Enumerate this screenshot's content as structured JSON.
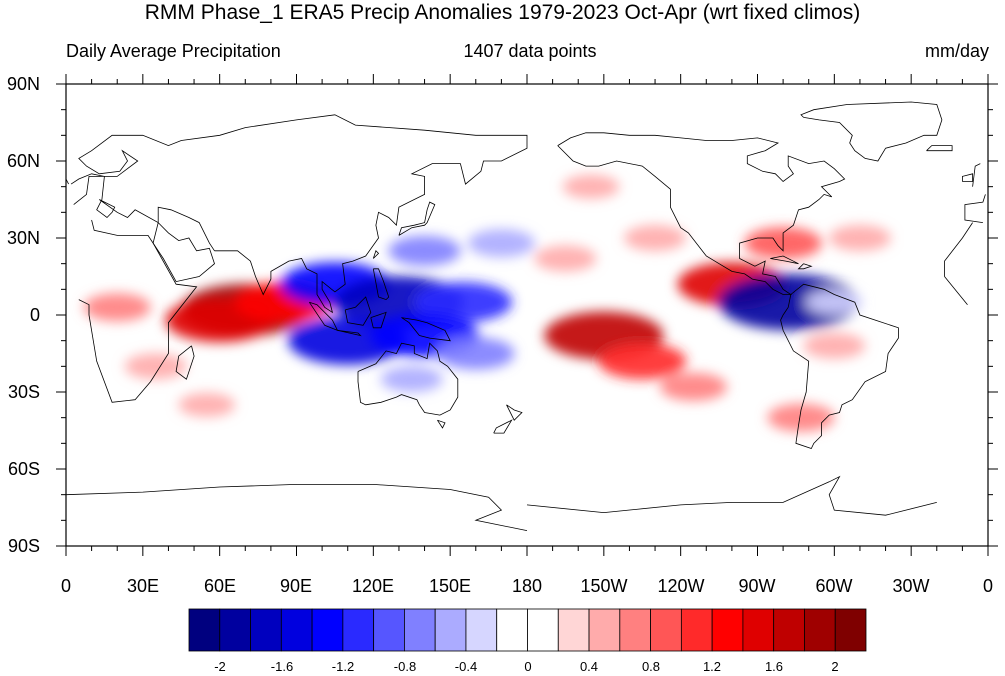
{
  "title": "RMM Phase_1 ERA5 Precip Anomalies 1979-2023 Oct-Apr (wrt fixed climos)",
  "left_string": "Daily Average Precipitation",
  "center_string": "1407 data points",
  "right_string": "mm/day",
  "lat_ticks": [
    "90N",
    "60N",
    "30N",
    "0",
    "30S",
    "60S",
    "90S"
  ],
  "lon_ticks": [
    "0",
    "30E",
    "60E",
    "90E",
    "120E",
    "150E",
    "180",
    "150W",
    "120W",
    "90W",
    "60W",
    "30W",
    "0"
  ],
  "colorbar": {
    "colors": [
      "#00007f",
      "#00009f",
      "#0000bf",
      "#0000df",
      "#0000ff",
      "#2a2aff",
      "#5656ff",
      "#8080ff",
      "#ababff",
      "#d6d6ff",
      "#ffffff",
      "#ffffff",
      "#ffd6d6",
      "#ffabab",
      "#ff8080",
      "#ff5656",
      "#ff2a2a",
      "#ff0000",
      "#df0000",
      "#bf0000",
      "#9f0000",
      "#7f0000"
    ],
    "labels": [
      "-2",
      "-1.6",
      "-1.2",
      "-0.8",
      "-0.4",
      "0",
      "0.4",
      "0.8",
      "1.2",
      "1.6",
      "2"
    ]
  },
  "anomalies": [
    {
      "lon": 70,
      "lat": 2,
      "value": 1.8
    },
    {
      "lon": 60,
      "lat": -2,
      "value": 1.4
    },
    {
      "lon": 85,
      "lat": 5,
      "value": 1.2
    },
    {
      "lon": 20,
      "lat": 3,
      "value": 0.6
    },
    {
      "lon": 35,
      "lat": -20,
      "value": 0.5
    },
    {
      "lon": 105,
      "lat": 12,
      "value": -1.4
    },
    {
      "lon": 130,
      "lat": 5,
      "value": -1.8
    },
    {
      "lon": 155,
      "lat": 5,
      "value": -1.2
    },
    {
      "lon": 110,
      "lat": -10,
      "value": -1.6
    },
    {
      "lon": 140,
      "lat": -8,
      "value": -1.4
    },
    {
      "lon": 160,
      "lat": -15,
      "value": -0.8
    },
    {
      "lon": 140,
      "lat": 25,
      "value": -0.7
    },
    {
      "lon": 170,
      "lat": 28,
      "value": -0.6
    },
    {
      "lon": 135,
      "lat": -25,
      "value": -0.5
    },
    {
      "lon": 210,
      "lat": -8,
      "value": 1.6
    },
    {
      "lon": 225,
      "lat": -18,
      "value": 1.0
    },
    {
      "lon": 245,
      "lat": -28,
      "value": 0.6
    },
    {
      "lon": 260,
      "lat": 12,
      "value": 1.4
    },
    {
      "lon": 280,
      "lat": 28,
      "value": 0.8
    },
    {
      "lon": 282,
      "lat": 5,
      "value": -2.0
    },
    {
      "lon": 300,
      "lat": -12,
      "value": 0.5
    },
    {
      "lon": 310,
      "lat": 30,
      "value": 0.5
    },
    {
      "lon": 230,
      "lat": 30,
      "value": 0.5
    },
    {
      "lon": 195,
      "lat": 22,
      "value": 0.5
    },
    {
      "lon": 300,
      "lat": 5,
      "value": -0.4
    },
    {
      "lon": 287,
      "lat": -40,
      "value": 0.6
    },
    {
      "lon": 55,
      "lat": -35,
      "value": 0.4
    },
    {
      "lon": 205,
      "lat": 50,
      "value": 0.4
    }
  ],
  "coastlines": [
    [
      [
        -17,
        15
      ],
      [
        -17,
        21
      ],
      [
        -10,
        30
      ],
      [
        -6,
        36
      ],
      [
        10,
        37
      ],
      [
        11,
        33
      ],
      [
        20,
        31
      ],
      [
        32,
        31
      ],
      [
        34,
        28
      ],
      [
        43,
        12
      ],
      [
        51,
        11
      ],
      [
        40,
        -3
      ],
      [
        40,
        -15
      ],
      [
        33,
        -26
      ],
      [
        27,
        -33
      ],
      [
        18,
        -34
      ],
      [
        12,
        -18
      ],
      [
        9,
        0
      ],
      [
        9,
        4
      ],
      [
        5,
        6
      ],
      [
        -8,
        4
      ],
      [
        -17,
        15
      ]
    ],
    [
      [
        49,
        -12
      ],
      [
        50,
        -16
      ],
      [
        47,
        -25
      ],
      [
        43,
        -22
      ],
      [
        44,
        -16
      ],
      [
        49,
        -12
      ]
    ],
    [
      [
        34,
        28
      ],
      [
        38,
        22
      ],
      [
        43,
        13
      ],
      [
        52,
        15
      ],
      [
        58,
        20
      ],
      [
        56,
        26
      ],
      [
        51,
        25
      ],
      [
        48,
        30
      ],
      [
        44,
        29
      ],
      [
        40,
        32
      ],
      [
        36,
        36
      ],
      [
        34,
        28
      ]
    ],
    [
      [
        58,
        25
      ],
      [
        67,
        25
      ],
      [
        72,
        21
      ],
      [
        74,
        15
      ],
      [
        77,
        8
      ],
      [
        80,
        14
      ],
      [
        80,
        17
      ],
      [
        87,
        21
      ],
      [
        92,
        22
      ],
      [
        94,
        18
      ],
      [
        98,
        16
      ],
      [
        98,
        8
      ],
      [
        101,
        3
      ],
      [
        104,
        1
      ],
      [
        103,
        5
      ],
      [
        100,
        10
      ],
      [
        100,
        13
      ],
      [
        105,
        9
      ],
      [
        109,
        12
      ],
      [
        108,
        20
      ],
      [
        112,
        21
      ],
      [
        117,
        23
      ],
      [
        122,
        30
      ],
      [
        121,
        35
      ],
      [
        122,
        40
      ],
      [
        126,
        38
      ],
      [
        129,
        35
      ],
      [
        130,
        42
      ],
      [
        140,
        47
      ],
      [
        140,
        54
      ],
      [
        135,
        55
      ],
      [
        143,
        59
      ],
      [
        154,
        59
      ],
      [
        156,
        51
      ],
      [
        162,
        56
      ],
      [
        163,
        60
      ],
      [
        170,
        60
      ],
      [
        180,
        65
      ],
      [
        180,
        70
      ],
      [
        160,
        70
      ],
      [
        140,
        72
      ],
      [
        113,
        74
      ],
      [
        105,
        78
      ],
      [
        90,
        76
      ],
      [
        70,
        73
      ],
      [
        60,
        70
      ],
      [
        45,
        68
      ],
      [
        40,
        66
      ],
      [
        30,
        70
      ],
      [
        18,
        70
      ],
      [
        10,
        64
      ],
      [
        5,
        61
      ],
      [
        8,
        58
      ],
      [
        13,
        55
      ],
      [
        21,
        56
      ],
      [
        24,
        60
      ],
      [
        22,
        64
      ],
      [
        28,
        60
      ],
      [
        20,
        54
      ],
      [
        9,
        54
      ],
      [
        8,
        47
      ],
      [
        3,
        43
      ],
      [
        -2,
        36
      ],
      [
        -9,
        37
      ],
      [
        -9,
        43
      ],
      [
        -2,
        44
      ],
      [
        -1,
        47
      ],
      [
        2,
        51
      ],
      [
        5,
        53
      ],
      [
        10,
        55
      ],
      [
        15,
        54
      ],
      [
        14,
        45
      ],
      [
        12,
        41
      ],
      [
        16,
        38
      ],
      [
        18,
        40
      ],
      [
        19,
        42
      ],
      [
        13,
        45
      ],
      [
        20,
        40
      ],
      [
        24,
        38
      ],
      [
        27,
        41
      ],
      [
        36,
        36
      ],
      [
        36,
        42
      ],
      [
        41,
        41
      ],
      [
        48,
        38
      ],
      [
        52,
        36
      ],
      [
        56,
        28
      ],
      [
        58,
        25
      ]
    ],
    [
      [
        -6,
        50
      ],
      [
        -5,
        58
      ],
      [
        -3,
        59
      ],
      [
        0,
        53
      ],
      [
        1,
        51
      ],
      [
        -6,
        50
      ]
    ],
    [
      [
        -10,
        52
      ],
      [
        -10,
        54
      ],
      [
        -6,
        55
      ],
      [
        -6,
        52
      ],
      [
        -10,
        52
      ]
    ],
    [
      [
        -24,
        64
      ],
      [
        -22,
        66
      ],
      [
        -14,
        66
      ],
      [
        -14,
        64
      ],
      [
        -24,
        64
      ]
    ],
    [
      [
        130,
        31
      ],
      [
        131,
        34
      ],
      [
        136,
        35
      ],
      [
        140,
        36
      ],
      [
        141,
        41
      ],
      [
        142,
        44
      ],
      [
        144,
        43
      ],
      [
        141,
        36
      ],
      [
        140,
        35
      ],
      [
        135,
        34
      ],
      [
        130,
        31
      ]
    ],
    [
      [
        120,
        22
      ],
      [
        121,
        25
      ],
      [
        122,
        24
      ],
      [
        120,
        22
      ]
    ],
    [
      [
        95,
        5
      ],
      [
        98,
        4
      ],
      [
        104,
        -2
      ],
      [
        106,
        -6
      ],
      [
        101,
        -4
      ],
      [
        95,
        5
      ]
    ],
    [
      [
        106,
        -6
      ],
      [
        115,
        -8
      ],
      [
        114,
        -7
      ],
      [
        106,
        -6
      ]
    ],
    [
      [
        109,
        2
      ],
      [
        110,
        -3
      ],
      [
        116,
        -4
      ],
      [
        119,
        1
      ],
      [
        117,
        7
      ],
      [
        113,
        3
      ],
      [
        109,
        2
      ]
    ],
    [
      [
        119,
        -1
      ],
      [
        120,
        -5
      ],
      [
        123,
        -5
      ],
      [
        125,
        1
      ],
      [
        119,
        -1
      ]
    ],
    [
      [
        131,
        -1
      ],
      [
        137,
        -2
      ],
      [
        141,
        -3
      ],
      [
        148,
        -6
      ],
      [
        150,
        -10
      ],
      [
        142,
        -9
      ],
      [
        138,
        -8
      ],
      [
        134,
        -3
      ],
      [
        131,
        -1
      ]
    ],
    [
      [
        120,
        18
      ],
      [
        122,
        18
      ],
      [
        124,
        13
      ],
      [
        126,
        7
      ],
      [
        125,
        6
      ],
      [
        122,
        7
      ],
      [
        120,
        18
      ]
    ],
    [
      [
        114,
        -22
      ],
      [
        114,
        -26
      ],
      [
        115,
        -34
      ],
      [
        117,
        -35
      ],
      [
        123,
        -34
      ],
      [
        129,
        -32
      ],
      [
        131,
        -31
      ],
      [
        137,
        -33
      ],
      [
        138,
        -35
      ],
      [
        140,
        -38
      ],
      [
        146,
        -39
      ],
      [
        150,
        -37
      ],
      [
        153,
        -32
      ],
      [
        153,
        -25
      ],
      [
        149,
        -20
      ],
      [
        146,
        -18
      ],
      [
        145,
        -14
      ],
      [
        142,
        -11
      ],
      [
        141,
        -17
      ],
      [
        136,
        -15
      ],
      [
        136,
        -12
      ],
      [
        131,
        -11
      ],
      [
        129,
        -15
      ],
      [
        125,
        -14
      ],
      [
        121,
        -19
      ],
      [
        114,
        -22
      ]
    ],
    [
      [
        145,
        -41
      ],
      [
        148,
        -42
      ],
      [
        147,
        -44
      ],
      [
        145,
        -41
      ]
    ],
    [
      [
        172,
        -35
      ],
      [
        175,
        -37
      ],
      [
        178,
        -38
      ],
      [
        175,
        -41
      ],
      [
        172,
        -35
      ]
    ],
    [
      [
        167,
        -46
      ],
      [
        171,
        -46
      ],
      [
        174,
        -41
      ],
      [
        168,
        -44
      ],
      [
        167,
        -46
      ]
    ],
    [
      [
        -168,
        66
      ],
      [
        -162,
        60
      ],
      [
        -157,
        58
      ],
      [
        -152,
        58
      ],
      [
        -145,
        60
      ],
      [
        -135,
        58
      ],
      [
        -130,
        54
      ],
      [
        -124,
        49
      ],
      [
        -124,
        42
      ],
      [
        -120,
        34
      ],
      [
        -117,
        32
      ],
      [
        -110,
        23
      ],
      [
        -105,
        20
      ],
      [
        -100,
        17
      ],
      [
        -95,
        16
      ],
      [
        -92,
        14
      ],
      [
        -87,
        13
      ],
      [
        -84,
        10
      ],
      [
        -80,
        8
      ],
      [
        -77,
        8
      ],
      [
        -80,
        10
      ],
      [
        -83,
        15
      ],
      [
        -88,
        16
      ],
      [
        -87,
        21
      ],
      [
        -91,
        19
      ],
      [
        -97,
        22
      ],
      [
        -97,
        28
      ],
      [
        -90,
        30
      ],
      [
        -84,
        30
      ],
      [
        -82,
        27
      ],
      [
        -80,
        25
      ],
      [
        -80,
        32
      ],
      [
        -76,
        35
      ],
      [
        -74,
        41
      ],
      [
        -70,
        42
      ],
      [
        -66,
        45
      ],
      [
        -64,
        47
      ],
      [
        -61,
        46
      ],
      [
        -65,
        50
      ],
      [
        -58,
        52
      ],
      [
        -56,
        53
      ],
      [
        -60,
        57
      ],
      [
        -64,
        60
      ],
      [
        -70,
        59
      ],
      [
        -78,
        62
      ],
      [
        -78,
        58
      ],
      [
        -76,
        55
      ],
      [
        -80,
        52
      ],
      [
        -83,
        55
      ],
      [
        -88,
        56
      ],
      [
        -94,
        59
      ],
      [
        -94,
        62
      ],
      [
        -87,
        64
      ],
      [
        -82,
        67
      ],
      [
        -90,
        69
      ],
      [
        -100,
        68
      ],
      [
        -110,
        68
      ],
      [
        -120,
        69
      ],
      [
        -130,
        70
      ],
      [
        -140,
        70
      ],
      [
        -150,
        71
      ],
      [
        -157,
        71
      ],
      [
        -163,
        69
      ],
      [
        -168,
        66
      ]
    ],
    [
      [
        -72,
        77
      ],
      [
        -73,
        78
      ],
      [
        -68,
        80
      ],
      [
        -55,
        82
      ],
      [
        -30,
        83
      ],
      [
        -20,
        82
      ],
      [
        -18,
        76
      ],
      [
        -20,
        70
      ],
      [
        -25,
        70
      ],
      [
        -32,
        67
      ],
      [
        -40,
        65
      ],
      [
        -43,
        60
      ],
      [
        -48,
        61
      ],
      [
        -52,
        64
      ],
      [
        -54,
        67
      ],
      [
        -53,
        70
      ],
      [
        -58,
        75
      ],
      [
        -66,
        76
      ],
      [
        -72,
        77
      ]
    ],
    [
      [
        -85,
        22
      ],
      [
        -80,
        23
      ],
      [
        -74,
        20
      ],
      [
        -79,
        21
      ],
      [
        -85,
        22
      ]
    ],
    [
      [
        -72,
        20
      ],
      [
        -69,
        19
      ],
      [
        -72,
        18
      ],
      [
        -74,
        18
      ],
      [
        -72,
        20
      ]
    ],
    [
      [
        -77,
        8
      ],
      [
        -72,
        12
      ],
      [
        -64,
        10
      ],
      [
        -60,
        8
      ],
      [
        -52,
        5
      ],
      [
        -50,
        0
      ],
      [
        -44,
        -2
      ],
      [
        -35,
        -5
      ],
      [
        -35,
        -9
      ],
      [
        -39,
        -15
      ],
      [
        -40,
        -22
      ],
      [
        -48,
        -26
      ],
      [
        -53,
        -33
      ],
      [
        -57,
        -35
      ],
      [
        -58,
        -38
      ],
      [
        -62,
        -39
      ],
      [
        -65,
        -42
      ],
      [
        -65,
        -47
      ],
      [
        -68,
        -50
      ],
      [
        -69,
        -52
      ],
      [
        -75,
        -50
      ],
      [
        -74,
        -43
      ],
      [
        -73,
        -37
      ],
      [
        -71,
        -30
      ],
      [
        -70,
        -18
      ],
      [
        -76,
        -14
      ],
      [
        -80,
        -6
      ],
      [
        -81,
        -2
      ],
      [
        -80,
        0
      ],
      [
        -78,
        3
      ],
      [
        -77,
        8
      ]
    ],
    [
      [
        -180,
        -74
      ],
      [
        -150,
        -77
      ],
      [
        -120,
        -74
      ],
      [
        -100,
        -73
      ],
      [
        -80,
        -73
      ],
      [
        -62,
        -65
      ],
      [
        -58,
        -63
      ],
      [
        -62,
        -70
      ],
      [
        -60,
        -76
      ],
      [
        -40,
        -78
      ],
      [
        -20,
        -73
      ],
      [
        0,
        -70
      ],
      [
        30,
        -69
      ],
      [
        60,
        -67
      ],
      [
        90,
        -66
      ],
      [
        120,
        -66
      ],
      [
        150,
        -68
      ],
      [
        165,
        -71
      ],
      [
        170,
        -76
      ],
      [
        160,
        -80
      ],
      [
        180,
        -84
      ]
    ]
  ]
}
